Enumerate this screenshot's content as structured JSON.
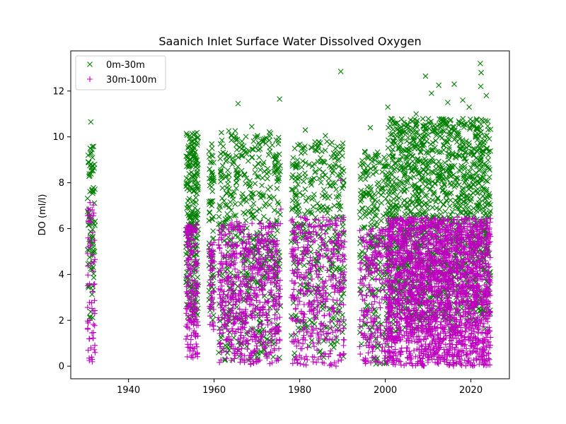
{
  "chart_data": {
    "type": "scatter",
    "title": "Saanich Inlet Surface Water Dissolved Oxygen",
    "xlabel": "",
    "ylabel": "DO (ml/l)",
    "xlim": [
      1926.5,
      2029
    ],
    "ylim": [
      -0.55,
      13.75
    ],
    "xticks": [
      1940,
      1960,
      1980,
      2000,
      2020
    ],
    "yticks": [
      0,
      2,
      4,
      6,
      8,
      10,
      12
    ],
    "grid": false,
    "legend_position": "top-left",
    "series": [
      {
        "name": "0m-30m",
        "marker": "x",
        "color": "#008000",
        "ranges": [
          {
            "x": [
              1930.4,
              1932.2
            ],
            "y": [
              2.0,
              9.6
            ],
            "n": 90
          },
          {
            "x": [
              1953.4,
              1956.3
            ],
            "y": [
              2.0,
              10.2
            ],
            "n": 240
          },
          {
            "x": [
              1958.8,
              1960.0
            ],
            "y": [
              2.0,
              9.9
            ],
            "n": 70
          },
          {
            "x": [
              1961.0,
              1975.5
            ],
            "y": [
              0.2,
              10.3
            ],
            "n": 520
          },
          {
            "x": [
              1978.0,
              1990.5
            ],
            "y": [
              0.3,
              9.8
            ],
            "n": 380
          },
          {
            "x": [
              1994.0,
              2000.5
            ],
            "y": [
              0.0,
              9.4
            ],
            "n": 230
          },
          {
            "x": [
              2000.5,
              2024.6
            ],
            "y": [
              1.5,
              10.8
            ],
            "n": 1400
          }
        ],
        "points": [
          {
            "x": 1931.2,
            "y": 10.65
          },
          {
            "x": 1965.6,
            "y": 11.45
          },
          {
            "x": 1975.3,
            "y": 11.65
          },
          {
            "x": 1968.8,
            "y": 10.45
          },
          {
            "x": 1981.3,
            "y": 10.3
          },
          {
            "x": 1986.0,
            "y": 10.05
          },
          {
            "x": 1989.6,
            "y": 12.85
          },
          {
            "x": 1996.5,
            "y": 10.4
          },
          {
            "x": 2000.6,
            "y": 11.3
          },
          {
            "x": 2009.4,
            "y": 12.65
          },
          {
            "x": 2012.5,
            "y": 12.25
          },
          {
            "x": 2016.1,
            "y": 12.3
          },
          {
            "x": 2022.2,
            "y": 13.2
          },
          {
            "x": 2022.4,
            "y": 12.8
          },
          {
            "x": 2022.3,
            "y": 12.2
          },
          {
            "x": 2023.6,
            "y": 11.8
          },
          {
            "x": 2018.1,
            "y": 11.6
          },
          {
            "x": 2010.8,
            "y": 11.9
          },
          {
            "x": 2014.6,
            "y": 11.5
          },
          {
            "x": 2007.2,
            "y": 11.0
          },
          {
            "x": 2019.6,
            "y": 11.3
          }
        ]
      },
      {
        "name": "30m-100m",
        "marker": "+",
        "color": "#c000c0",
        "ranges": [
          {
            "x": [
              1930.4,
              1932.2
            ],
            "y": [
              0.1,
              7.2
            ],
            "n": 60
          },
          {
            "x": [
              1953.4,
              1956.3
            ],
            "y": [
              0.3,
              6.2
            ],
            "n": 180
          },
          {
            "x": [
              1958.8,
              1960.0
            ],
            "y": [
              1.5,
              5.5
            ],
            "n": 50
          },
          {
            "x": [
              1961.0,
              1975.5
            ],
            "y": [
              0.0,
              6.3
            ],
            "n": 620
          },
          {
            "x": [
              1978.0,
              1990.5
            ],
            "y": [
              0.0,
              6.5
            ],
            "n": 420
          },
          {
            "x": [
              1994.0,
              2000.5
            ],
            "y": [
              0.0,
              6.0
            ],
            "n": 220
          },
          {
            "x": [
              2000.5,
              2024.6
            ],
            "y": [
              0.0,
              6.5
            ],
            "n": 2200
          }
        ],
        "points": [
          {
            "x": 1989.6,
            "y": 8.1
          },
          {
            "x": 1975.6,
            "y": 6.85
          },
          {
            "x": 1931.2,
            "y": 0.8
          },
          {
            "x": 1931.5,
            "y": 0.3
          },
          {
            "x": 1930.8,
            "y": 0.35
          }
        ]
      }
    ]
  }
}
